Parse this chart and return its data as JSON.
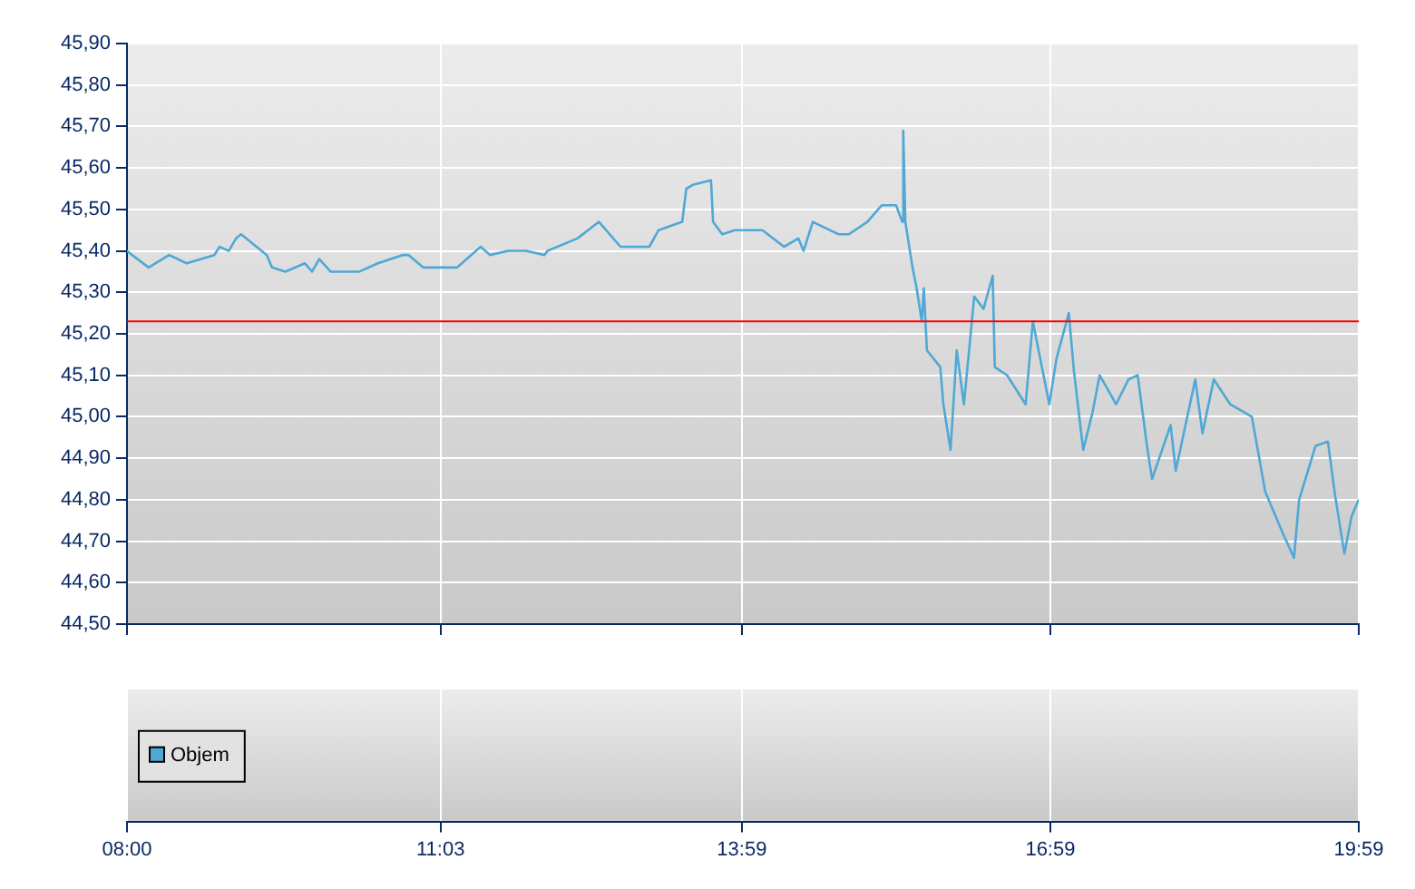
{
  "chart_data": [
    {
      "type": "line",
      "tick_labels": "y",
      "grid": true,
      "legend": false,
      "marker": "none",
      "line_style": "solid",
      "x": [
        8.0,
        8.05,
        8.21,
        8.41,
        8.58,
        8.85,
        8.9,
        8.99,
        9.06,
        9.11,
        9.36,
        9.41,
        9.54,
        9.73,
        9.8,
        9.87,
        9.98,
        10.26,
        10.44,
        10.68,
        10.74,
        10.88,
        11.21,
        11.44,
        11.53,
        11.71,
        11.88,
        12.06,
        12.09,
        12.38,
        12.59,
        12.8,
        13.08,
        13.17,
        13.4,
        13.44,
        13.51,
        13.68,
        13.7,
        13.79,
        13.91,
        14.18,
        14.39,
        14.53,
        14.58,
        14.67,
        14.92,
        15.02,
        15.2,
        15.34,
        15.48,
        15.54,
        15.55,
        15.57,
        15.64,
        15.68,
        15.73,
        15.75,
        15.78,
        15.91,
        15.94,
        16.01,
        16.07,
        16.14,
        16.24,
        16.33,
        16.42,
        16.44,
        16.56,
        16.74,
        16.81,
        16.97,
        17.04,
        17.16,
        17.21,
        17.3,
        17.39,
        17.46,
        17.62,
        17.74,
        17.83,
        17.92,
        17.97,
        18.15,
        18.2,
        18.39,
        18.46,
        18.57,
        18.73,
        18.94,
        19.07,
        19.24,
        19.35,
        19.4,
        19.56,
        19.68,
        19.75,
        19.84,
        19.91,
        19.98
      ],
      "series": [
        {
          "color": "#4fa8d5",
          "values": [
            45.4,
            45.39,
            45.36,
            45.39,
            45.37,
            45.39,
            45.41,
            45.4,
            45.43,
            45.44,
            45.39,
            45.36,
            45.35,
            45.37,
            45.35,
            45.38,
            45.35,
            45.35,
            45.37,
            45.39,
            45.39,
            45.36,
            45.36,
            45.41,
            45.39,
            45.4,
            45.4,
            45.39,
            45.4,
            45.43,
            45.47,
            45.41,
            45.41,
            45.45,
            45.47,
            45.55,
            45.56,
            45.57,
            45.47,
            45.44,
            45.45,
            45.45,
            45.41,
            45.43,
            45.4,
            45.47,
            45.44,
            45.44,
            45.47,
            45.51,
            45.51,
            45.47,
            45.69,
            45.47,
            45.36,
            45.31,
            45.23,
            45.31,
            45.16,
            45.12,
            45.03,
            44.92,
            45.16,
            45.03,
            45.29,
            45.26,
            45.34,
            45.12,
            45.1,
            45.03,
            45.23,
            45.03,
            45.14,
            45.25,
            45.11,
            44.92,
            45.01,
            45.1,
            45.03,
            45.09,
            45.1,
            44.93,
            44.85,
            44.98,
            44.87,
            45.09,
            44.96,
            45.09,
            45.03,
            45.0,
            44.82,
            44.72,
            44.66,
            44.8,
            44.93,
            44.94,
            44.81,
            44.67,
            44.76,
            44.8
          ]
        }
      ],
      "xlim": [
        8,
        19.98
      ],
      "xticks": [
        {
          "value": 8,
          "label": "08:00"
        },
        {
          "value": 11.05,
          "label": "11:03"
        },
        {
          "value": 13.98,
          "label": "13:59"
        },
        {
          "value": 16.98,
          "label": "16:59"
        },
        {
          "value": 19.98,
          "label": "19:59"
        }
      ],
      "ylim": [
        44.5,
        45.9
      ],
      "yticks": [
        {
          "value": 44.5,
          "label": "44,50"
        },
        {
          "value": 44.6,
          "label": "44,60"
        },
        {
          "value": 44.7,
          "label": "44,70"
        },
        {
          "value": 44.8,
          "label": "44,80"
        },
        {
          "value": 44.9,
          "label": "44,90"
        },
        {
          "value": 45.0,
          "label": "45,00"
        },
        {
          "value": 45.1,
          "label": "45,10"
        },
        {
          "value": 45.2,
          "label": "45,20"
        },
        {
          "value": 45.3,
          "label": "45,30"
        },
        {
          "value": 45.4,
          "label": "45,40"
        },
        {
          "value": 45.5,
          "label": "45,50"
        },
        {
          "value": 45.6,
          "label": "45,60"
        },
        {
          "value": 45.7,
          "label": "45,70"
        },
        {
          "value": 45.8,
          "label": "45,80"
        },
        {
          "value": 45.9,
          "label": "45,90"
        }
      ],
      "ref_lines": [
        {
          "axis": "y",
          "value": 45.23,
          "color": "#ff0000"
        }
      ]
    },
    {
      "type": "other",
      "legend": "left",
      "series": [
        {
          "name": "Objem",
          "color": "#4fa8d5"
        }
      ]
    }
  ]
}
